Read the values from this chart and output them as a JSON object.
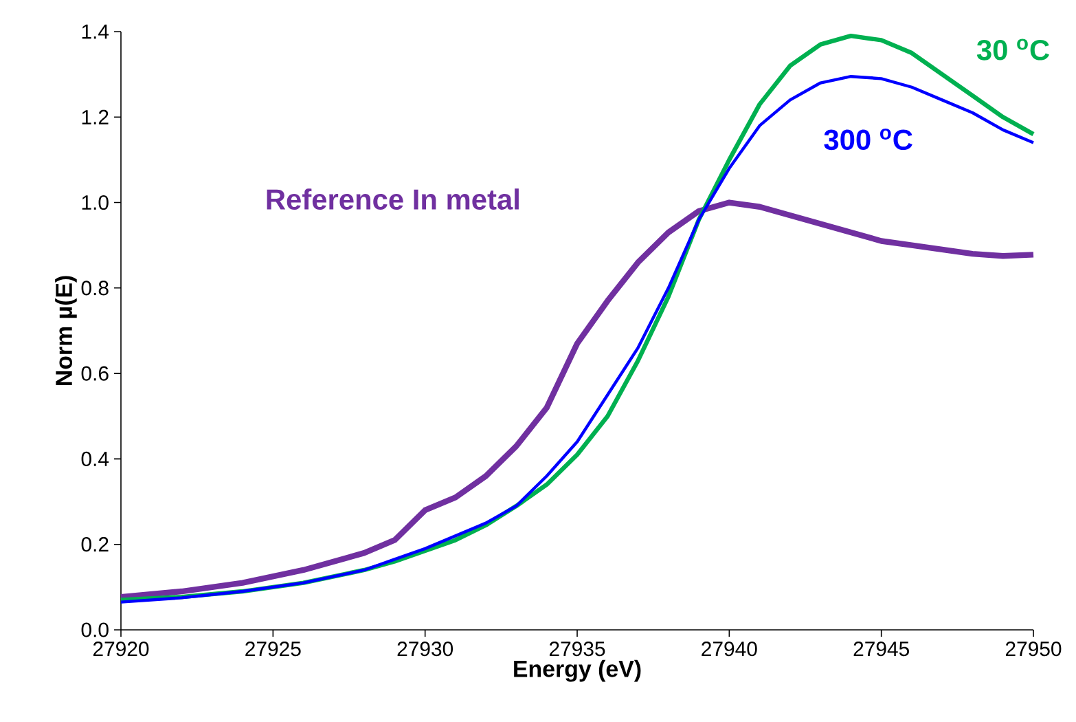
{
  "chart_data": {
    "type": "line",
    "xlabel": "Energy (eV)",
    "ylabel": "Norm µ(E)",
    "xlim": [
      27920,
      27950
    ],
    "ylim": [
      0,
      1.4
    ],
    "xticks": [
      27920,
      27925,
      27930,
      27935,
      27940,
      27945,
      27950
    ],
    "yticks": [
      {
        "value": 0,
        "label": "0.0"
      },
      {
        "value": 0.2,
        "label": "0.2"
      },
      {
        "value": 0.4,
        "label": "0.4"
      },
      {
        "value": 0.6,
        "label": "0.6"
      },
      {
        "value": 0.8,
        "label": "0.8"
      },
      {
        "value": 1.0,
        "label": "1.0"
      },
      {
        "value": 1.2,
        "label": "1.2"
      },
      {
        "value": 1.4,
        "label": "1.4"
      }
    ],
    "grid": false,
    "legend": false,
    "marker": "none",
    "line_style": "solid",
    "x": [
      27920,
      27922,
      27924,
      27926,
      27928,
      27929,
      27930,
      27931,
      27932,
      27933,
      27934,
      27935,
      27936,
      27937,
      27938,
      27939,
      27940,
      27941,
      27942,
      27943,
      27944,
      27945,
      27946,
      27947,
      27948,
      27949,
      27950
    ],
    "series": [
      {
        "name": "Reference In metal",
        "color": "#7030a0",
        "values": [
          0.077,
          0.09,
          0.11,
          0.14,
          0.18,
          0.21,
          0.28,
          0.31,
          0.36,
          0.43,
          0.52,
          0.67,
          0.77,
          0.86,
          0.93,
          0.98,
          1.0,
          0.99,
          0.97,
          0.95,
          0.93,
          0.91,
          0.9,
          0.89,
          0.88,
          0.875,
          0.878
        ]
      },
      {
        "name": "30 $^{o}$C",
        "color": "#00b050",
        "values": [
          0.07,
          0.077,
          0.09,
          0.11,
          0.14,
          0.16,
          0.185,
          0.21,
          0.245,
          0.29,
          0.34,
          0.41,
          0.5,
          0.63,
          0.78,
          0.96,
          1.1,
          1.23,
          1.32,
          1.37,
          1.39,
          1.38,
          1.35,
          1.3,
          1.25,
          1.2,
          1.16
        ]
      },
      {
        "name": "300 $^{o}$C",
        "color": "#0000ff",
        "values": [
          0.065,
          0.075,
          0.09,
          0.11,
          0.14,
          0.165,
          0.19,
          0.22,
          0.25,
          0.29,
          0.36,
          0.44,
          0.55,
          0.66,
          0.8,
          0.96,
          1.08,
          1.18,
          1.24,
          1.28,
          1.295,
          1.29,
          1.27,
          1.24,
          1.21,
          1.17,
          1.14
        ]
      }
    ]
  }
}
